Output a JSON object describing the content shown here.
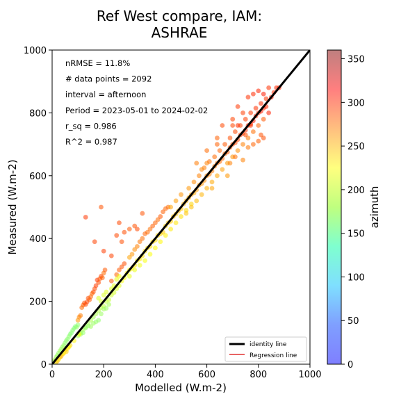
{
  "chart_data": {
    "type": "scatter",
    "title_line1": "Ref West compare, IAM:",
    "title_line2": "ASHRAE",
    "xlabel": "Modelled (W.m-2)",
    "ylabel": "Measured (W.m-2)",
    "xlim": [
      0,
      1000
    ],
    "ylim": [
      0,
      1000
    ],
    "xticks": [
      0,
      200,
      400,
      600,
      800,
      1000
    ],
    "yticks": [
      0,
      200,
      400,
      600,
      800,
      1000
    ],
    "grid": false,
    "annotations": [
      "nRMSE = 11.8%",
      "# data points = 2092",
      "interval = afternoon",
      "Period = 2023-05-01 to 2024-02-02",
      "r_sq = 0.986",
      "R^2 = 0.987"
    ],
    "legend": {
      "placement": "lower-right",
      "entries": [
        {
          "label": "identity line",
          "color": "#000000"
        },
        {
          "label": "Regression line",
          "color": "#e03030"
        }
      ]
    },
    "identity_line": {
      "x": [
        0,
        1000
      ],
      "y": [
        0,
        1000
      ]
    },
    "regression_line": {
      "x": [
        0,
        890
      ],
      "y": [
        2,
        887
      ]
    },
    "colorbar": {
      "label": "azimuth",
      "range": [
        0,
        360
      ],
      "ticks": [
        0,
        50,
        100,
        150,
        200,
        250,
        300,
        350
      ],
      "colormap": "jet"
    },
    "scatter_points": [
      [
        5,
        8,
        190
      ],
      [
        10,
        14,
        195
      ],
      [
        15,
        22,
        192
      ],
      [
        20,
        28,
        190
      ],
      [
        25,
        35,
        188
      ],
      [
        30,
        42,
        192
      ],
      [
        35,
        48,
        190
      ],
      [
        40,
        55,
        188
      ],
      [
        45,
        60,
        190
      ],
      [
        50,
        68,
        185
      ],
      [
        55,
        75,
        186
      ],
      [
        60,
        80,
        184
      ],
      [
        65,
        88,
        186
      ],
      [
        70,
        95,
        183
      ],
      [
        75,
        100,
        182
      ],
      [
        80,
        108,
        184
      ],
      [
        85,
        114,
        182
      ],
      [
        90,
        120,
        180
      ],
      [
        95,
        118,
        188
      ],
      [
        100,
        125,
        185
      ],
      [
        30,
        22,
        250
      ],
      [
        40,
        32,
        245
      ],
      [
        50,
        45,
        240
      ],
      [
        60,
        50,
        235
      ],
      [
        70,
        60,
        238
      ],
      [
        20,
        10,
        252
      ],
      [
        35,
        25,
        248
      ],
      [
        55,
        40,
        242
      ],
      [
        100,
        140,
        262
      ],
      [
        105,
        150,
        268
      ],
      [
        110,
        155,
        272
      ],
      [
        115,
        180,
        278
      ],
      [
        120,
        188,
        282
      ],
      [
        125,
        195,
        286
      ],
      [
        130,
        190,
        290
      ],
      [
        135,
        198,
        292
      ],
      [
        140,
        210,
        288
      ],
      [
        145,
        205,
        284
      ],
      [
        150,
        215,
        280
      ],
      [
        155,
        225,
        278
      ],
      [
        160,
        230,
        286
      ],
      [
        165,
        240,
        290
      ],
      [
        170,
        250,
        294
      ],
      [
        175,
        268,
        296
      ],
      [
        180,
        260,
        288
      ],
      [
        185,
        272,
        285
      ],
      [
        190,
        280,
        290
      ],
      [
        195,
        275,
        282
      ],
      [
        200,
        290,
        278
      ],
      [
        205,
        300,
        284
      ],
      [
        110,
        100,
        198
      ],
      [
        120,
        110,
        196
      ],
      [
        130,
        118,
        195
      ],
      [
        140,
        130,
        194
      ],
      [
        150,
        140,
        196
      ],
      [
        160,
        150,
        194
      ],
      [
        170,
        160,
        196
      ],
      [
        180,
        170,
        198
      ],
      [
        190,
        180,
        200
      ],
      [
        200,
        185,
        202
      ],
      [
        210,
        200,
        204
      ],
      [
        220,
        205,
        206
      ],
      [
        230,
        220,
        208
      ],
      [
        240,
        228,
        210
      ],
      [
        250,
        240,
        212
      ],
      [
        260,
        250,
        214
      ],
      [
        150,
        120,
        192
      ],
      [
        160,
        130,
        190
      ],
      [
        170,
        135,
        188
      ],
      [
        180,
        140,
        186
      ],
      [
        190,
        160,
        190
      ],
      [
        200,
        175,
        192
      ],
      [
        210,
        178,
        190
      ],
      [
        220,
        190,
        194
      ],
      [
        120,
        100,
        188
      ],
      [
        130,
        115,
        186
      ],
      [
        140,
        122,
        188
      ],
      [
        100,
        90,
        190
      ],
      [
        110,
        95,
        188
      ],
      [
        270,
        265,
        222
      ],
      [
        280,
        275,
        224
      ],
      [
        290,
        290,
        228
      ],
      [
        300,
        300,
        226
      ],
      [
        310,
        305,
        230
      ],
      [
        320,
        315,
        232
      ],
      [
        330,
        330,
        228
      ],
      [
        340,
        335,
        234
      ],
      [
        350,
        345,
        236
      ],
      [
        360,
        360,
        238
      ],
      [
        370,
        370,
        240
      ],
      [
        380,
        375,
        236
      ],
      [
        390,
        390,
        240
      ],
      [
        400,
        395,
        238
      ],
      [
        410,
        410,
        242
      ],
      [
        420,
        415,
        240
      ],
      [
        430,
        420,
        244
      ],
      [
        440,
        440,
        242
      ],
      [
        450,
        450,
        246
      ],
      [
        460,
        455,
        244
      ],
      [
        470,
        470,
        248
      ],
      [
        480,
        478,
        246
      ],
      [
        490,
        488,
        250
      ],
      [
        500,
        495,
        248
      ],
      [
        300,
        340,
        258
      ],
      [
        310,
        350,
        262
      ],
      [
        320,
        365,
        266
      ],
      [
        330,
        375,
        270
      ],
      [
        340,
        390,
        274
      ],
      [
        350,
        400,
        276
      ],
      [
        360,
        415,
        280
      ],
      [
        370,
        420,
        278
      ],
      [
        380,
        430,
        276
      ],
      [
        390,
        440,
        282
      ],
      [
        400,
        450,
        280
      ],
      [
        410,
        460,
        278
      ],
      [
        420,
        470,
        284
      ],
      [
        430,
        485,
        282
      ],
      [
        440,
        495,
        280
      ],
      [
        450,
        500,
        278
      ],
      [
        250,
        285,
        280
      ],
      [
        260,
        300,
        284
      ],
      [
        270,
        310,
        286
      ],
      [
        280,
        320,
        288
      ],
      [
        230,
        265,
        286
      ],
      [
        260,
        450,
        290
      ],
      [
        200,
        360,
        294
      ],
      [
        250,
        410,
        290
      ],
      [
        280,
        420,
        288
      ],
      [
        300,
        430,
        284
      ],
      [
        320,
        440,
        286
      ],
      [
        330,
        430,
        290
      ],
      [
        350,
        480,
        286
      ],
      [
        130,
        468,
        296
      ],
      [
        165,
        390,
        292
      ],
      [
        190,
        500,
        286
      ],
      [
        230,
        345,
        292
      ],
      [
        270,
        390,
        288
      ],
      [
        300,
        280,
        216
      ],
      [
        320,
        300,
        218
      ],
      [
        340,
        315,
        220
      ],
      [
        360,
        330,
        222
      ],
      [
        380,
        350,
        224
      ],
      [
        400,
        370,
        226
      ],
      [
        420,
        390,
        228
      ],
      [
        440,
        410,
        230
      ],
      [
        460,
        430,
        232
      ],
      [
        480,
        450,
        234
      ],
      [
        500,
        470,
        236
      ],
      [
        520,
        490,
        238
      ],
      [
        540,
        510,
        240
      ],
      [
        510,
        510,
        252
      ],
      [
        520,
        520,
        254
      ],
      [
        530,
        530,
        256
      ],
      [
        540,
        540,
        258
      ],
      [
        550,
        545,
        256
      ],
      [
        560,
        555,
        260
      ],
      [
        570,
        570,
        262
      ],
      [
        580,
        575,
        264
      ],
      [
        590,
        585,
        266
      ],
      [
        600,
        600,
        268
      ],
      [
        610,
        605,
        270
      ],
      [
        620,
        615,
        272
      ],
      [
        630,
        630,
        274
      ],
      [
        640,
        640,
        276
      ],
      [
        650,
        645,
        278
      ],
      [
        660,
        655,
        280
      ],
      [
        670,
        670,
        282
      ],
      [
        680,
        675,
        284
      ],
      [
        690,
        690,
        286
      ],
      [
        700,
        700,
        288
      ],
      [
        710,
        705,
        290
      ],
      [
        720,
        715,
        292
      ],
      [
        730,
        730,
        294
      ],
      [
        740,
        735,
        296
      ],
      [
        750,
        745,
        298
      ],
      [
        760,
        760,
        300
      ],
      [
        770,
        765,
        302
      ],
      [
        780,
        775,
        304
      ],
      [
        790,
        790,
        302
      ],
      [
        800,
        800,
        300
      ],
      [
        810,
        805,
        304
      ],
      [
        820,
        815,
        302
      ],
      [
        530,
        560,
        262
      ],
      [
        550,
        580,
        266
      ],
      [
        570,
        600,
        270
      ],
      [
        590,
        625,
        272
      ],
      [
        610,
        645,
        276
      ],
      [
        630,
        660,
        278
      ],
      [
        650,
        680,
        282
      ],
      [
        670,
        700,
        284
      ],
      [
        690,
        720,
        288
      ],
      [
        710,
        740,
        290
      ],
      [
        730,
        760,
        292
      ],
      [
        750,
        780,
        294
      ],
      [
        770,
        800,
        296
      ],
      [
        790,
        815,
        298
      ],
      [
        810,
        830,
        300
      ],
      [
        830,
        845,
        298
      ],
      [
        520,
        480,
        246
      ],
      [
        540,
        500,
        248
      ],
      [
        560,
        520,
        250
      ],
      [
        580,
        540,
        252
      ],
      [
        600,
        560,
        254
      ],
      [
        620,
        580,
        256
      ],
      [
        640,
        600,
        258
      ],
      [
        660,
        620,
        260
      ],
      [
        680,
        640,
        262
      ],
      [
        700,
        660,
        264
      ],
      [
        720,
        680,
        266
      ],
      [
        740,
        700,
        270
      ],
      [
        760,
        720,
        272
      ],
      [
        780,
        740,
        276
      ],
      [
        800,
        760,
        280
      ],
      [
        820,
        780,
        284
      ],
      [
        560,
        640,
        272
      ],
      [
        600,
        680,
        278
      ],
      [
        640,
        720,
        282
      ],
      [
        660,
        760,
        290
      ],
      [
        700,
        780,
        292
      ],
      [
        720,
        820,
        296
      ],
      [
        760,
        850,
        298
      ],
      [
        780,
        860,
        300
      ],
      [
        800,
        870,
        302
      ],
      [
        840,
        880,
        298
      ],
      [
        860,
        865,
        300
      ],
      [
        870,
        880,
        302
      ],
      [
        850,
        850,
        304
      ],
      [
        880,
        880,
        300
      ],
      [
        620,
        560,
        258
      ],
      [
        680,
        600,
        262
      ],
      [
        740,
        650,
        270
      ],
      [
        760,
        690,
        274
      ],
      [
        780,
        700,
        280
      ],
      [
        800,
        710,
        282
      ],
      [
        810,
        730,
        286
      ],
      [
        820,
        720,
        288
      ],
      [
        500,
        540,
        264
      ],
      [
        480,
        520,
        260
      ],
      [
        460,
        500,
        258
      ],
      [
        580,
        620,
        268
      ],
      [
        600,
        640,
        270
      ],
      [
        640,
        700,
        282
      ],
      [
        700,
        760,
        290
      ],
      [
        740,
        800,
        294
      ],
      [
        720,
        760,
        298
      ],
      [
        690,
        640,
        270
      ],
      [
        710,
        660,
        276
      ],
      [
        750,
        730,
        288
      ],
      [
        770,
        760,
        296
      ],
      [
        830,
        820,
        302
      ],
      [
        840,
        800,
        304
      ],
      [
        820,
        860,
        306
      ],
      [
        200,
        220,
        212
      ],
      [
        210,
        230,
        214
      ],
      [
        190,
        200,
        210
      ],
      [
        180,
        210,
        212
      ],
      [
        240,
        250,
        216
      ],
      [
        250,
        270,
        218
      ],
      [
        260,
        280,
        220
      ],
      [
        230,
        240,
        214
      ],
      [
        15,
        5,
        240
      ],
      [
        25,
        15,
        236
      ],
      [
        45,
        35,
        232
      ],
      [
        65,
        55,
        230
      ],
      [
        85,
        75,
        228
      ],
      [
        105,
        95,
        226
      ]
    ]
  }
}
